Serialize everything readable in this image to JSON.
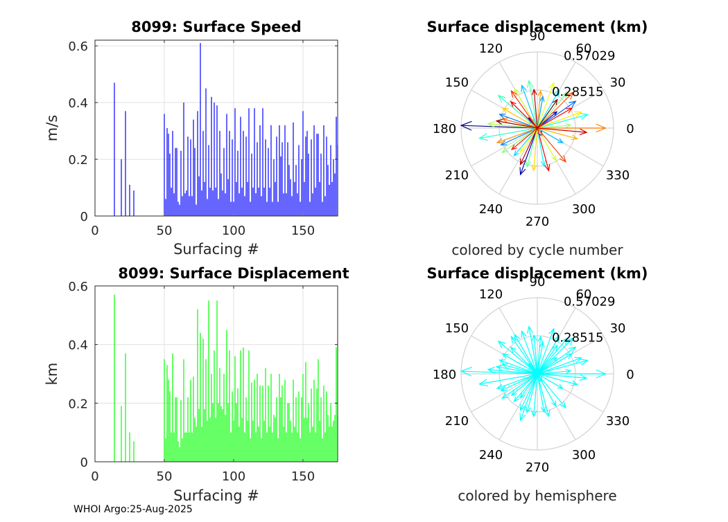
{
  "footer": "WHOI Argo:25-Aug-2025",
  "chart_data": [
    {
      "type": "bar",
      "title": "8099: Surface Speed",
      "xlabel": "Surfacing #",
      "ylabel": "m/s",
      "xlim": [
        0,
        175
      ],
      "ylim": [
        0,
        0.62
      ],
      "xticks": [
        0,
        50,
        100,
        150
      ],
      "yticks": [
        0,
        0.2,
        0.4,
        0.6
      ],
      "ytick_labels": [
        "0",
        "0.2",
        "0.4",
        "0.6"
      ],
      "grid": true,
      "color": "#0000ff",
      "x": [
        14,
        19,
        22,
        25,
        28,
        50,
        51,
        52,
        53,
        54,
        55,
        56,
        57,
        58,
        59,
        60,
        61,
        62,
        63,
        64,
        65,
        66,
        67,
        68,
        69,
        70,
        71,
        72,
        73,
        74,
        75,
        76,
        77,
        78,
        79,
        80,
        81,
        82,
        83,
        84,
        85,
        86,
        87,
        88,
        89,
        90,
        91,
        92,
        93,
        94,
        95,
        96,
        97,
        98,
        99,
        100,
        101,
        102,
        103,
        104,
        105,
        106,
        107,
        108,
        109,
        110,
        111,
        112,
        113,
        114,
        115,
        116,
        117,
        118,
        119,
        120,
        121,
        122,
        123,
        124,
        125,
        126,
        127,
        128,
        129,
        130,
        131,
        132,
        133,
        134,
        135,
        136,
        137,
        138,
        139,
        140,
        141,
        142,
        143,
        144,
        145,
        146,
        147,
        148,
        149,
        150,
        151,
        152,
        153,
        154,
        155,
        156,
        157,
        158,
        159,
        160,
        161,
        162,
        163,
        164,
        165,
        166,
        167,
        168,
        169,
        170,
        171,
        172,
        173,
        174,
        175
      ],
      "values": [
        0.47,
        0.2,
        0.37,
        0.11,
        0.09,
        0.36,
        0.06,
        0.31,
        0.29,
        0.22,
        0.1,
        0.3,
        0.08,
        0.24,
        0.24,
        0.05,
        0.04,
        0.23,
        0.07,
        0.4,
        0.08,
        0.09,
        0.28,
        0.07,
        0.27,
        0.07,
        0.34,
        0.24,
        0.04,
        0.37,
        0.14,
        0.61,
        0.09,
        0.3,
        0.12,
        0.45,
        0.06,
        0.25,
        0.1,
        0.42,
        0.09,
        0.4,
        0.1,
        0.39,
        0.06,
        0.3,
        0.15,
        0.09,
        0.24,
        0.08,
        0.36,
        0.13,
        0.3,
        0.05,
        0.27,
        0.05,
        0.38,
        0.12,
        0.23,
        0.08,
        0.35,
        0.1,
        0.3,
        0.07,
        0.28,
        0.12,
        0.38,
        0.05,
        0.22,
        0.1,
        0.38,
        0.08,
        0.26,
        0.1,
        0.32,
        0.07,
        0.38,
        0.1,
        0.27,
        0.05,
        0.24,
        0.1,
        0.32,
        0.05,
        0.2,
        0.12,
        0.28,
        0.05,
        0.32,
        0.21,
        0.26,
        0.08,
        0.32,
        0.08,
        0.26,
        0.18,
        0.13,
        0.07,
        0.33,
        0.12,
        0.18,
        0.08,
        0.25,
        0.05,
        0.2,
        0.37,
        0.12,
        0.28,
        0.3,
        0.22,
        0.05,
        0.27,
        0.08,
        0.32,
        0.1,
        0.29,
        0.29,
        0.12,
        0.22,
        0.05,
        0.32,
        0.07,
        0.28,
        0.18,
        0.11,
        0.25,
        0.12,
        0.2,
        0.15,
        0.35,
        0.25
      ]
    },
    {
      "type": "polar-arrows",
      "title": "Surface displacement (km)",
      "rmax": 0.57029,
      "ring_labels": [
        "0.28515",
        "0.57029"
      ],
      "angle_ticks": [
        0,
        30,
        60,
        90,
        120,
        150,
        180,
        210,
        240,
        270,
        300,
        330
      ],
      "angle_labels": [
        "0",
        "30",
        "60",
        "90",
        "120",
        "150",
        "180",
        "210",
        "240",
        "270",
        "300",
        "330"
      ],
      "caption": "colored by cycle number",
      "colormap": "jet",
      "arrows": [
        {
          "cycle": 14,
          "angle": 178,
          "r": 0.57
        },
        {
          "cycle": 19,
          "angle": 40,
          "r": 0.19
        },
        {
          "cycle": 22,
          "angle": 250,
          "r": 0.37
        },
        {
          "cycle": 25,
          "angle": 130,
          "r": 0.1
        },
        {
          "cycle": 28,
          "angle": 300,
          "r": 0.07
        },
        {
          "cycle": 50,
          "angle": 35,
          "r": 0.35
        },
        {
          "cycle": 53,
          "angle": 160,
          "r": 0.3
        },
        {
          "cycle": 56,
          "angle": 205,
          "r": 0.3
        },
        {
          "cycle": 59,
          "angle": 80,
          "r": 0.24
        },
        {
          "cycle": 62,
          "angle": 330,
          "r": 0.22
        },
        {
          "cycle": 65,
          "angle": 110,
          "r": 0.34
        },
        {
          "cycle": 68,
          "angle": 230,
          "r": 0.27
        },
        {
          "cycle": 71,
          "angle": 60,
          "r": 0.33
        },
        {
          "cycle": 74,
          "angle": 280,
          "r": 0.29
        },
        {
          "cycle": 77,
          "angle": 15,
          "r": 0.39
        },
        {
          "cycle": 80,
          "angle": 190,
          "r": 0.44
        },
        {
          "cycle": 83,
          "angle": 140,
          "r": 0.38
        },
        {
          "cycle": 86,
          "angle": 100,
          "r": 0.36
        },
        {
          "cycle": 89,
          "angle": 255,
          "r": 0.3
        },
        {
          "cycle": 92,
          "angle": 50,
          "r": 0.35
        },
        {
          "cycle": 95,
          "angle": 215,
          "r": 0.32
        },
        {
          "cycle": 98,
          "angle": 5,
          "r": 0.25
        },
        {
          "cycle": 101,
          "angle": 175,
          "r": 0.37
        },
        {
          "cycle": 104,
          "angle": 120,
          "r": 0.34
        },
        {
          "cycle": 107,
          "angle": 300,
          "r": 0.28
        },
        {
          "cycle": 110,
          "angle": 70,
          "r": 0.36
        },
        {
          "cycle": 113,
          "angle": 235,
          "r": 0.22
        },
        {
          "cycle": 116,
          "angle": 20,
          "r": 0.35
        },
        {
          "cycle": 119,
          "angle": 265,
          "r": 0.32
        },
        {
          "cycle": 122,
          "angle": 150,
          "r": 0.3
        },
        {
          "cycle": 125,
          "angle": 345,
          "r": 0.31
        },
        {
          "cycle": 128,
          "angle": 85,
          "r": 0.28
        },
        {
          "cycle": 131,
          "angle": 200,
          "r": 0.32
        },
        {
          "cycle": 134,
          "angle": 0,
          "r": 0.51
        },
        {
          "cycle": 137,
          "angle": 165,
          "r": 0.27
        },
        {
          "cycle": 140,
          "angle": 45,
          "r": 0.38
        },
        {
          "cycle": 143,
          "angle": 310,
          "r": 0.33
        },
        {
          "cycle": 146,
          "angle": 125,
          "r": 0.34
        },
        {
          "cycle": 149,
          "angle": 220,
          "r": 0.25
        },
        {
          "cycle": 152,
          "angle": 30,
          "r": 0.3
        },
        {
          "cycle": 155,
          "angle": 285,
          "r": 0.33
        },
        {
          "cycle": 158,
          "angle": 135,
          "r": 0.28
        },
        {
          "cycle": 161,
          "angle": 355,
          "r": 0.37
        },
        {
          "cycle": 164,
          "angle": 95,
          "r": 0.29
        },
        {
          "cycle": 167,
          "angle": 245,
          "r": 0.3
        },
        {
          "cycle": 170,
          "angle": 170,
          "r": 0.31
        },
        {
          "cycle": 173,
          "angle": 55,
          "r": 0.26
        }
      ]
    },
    {
      "type": "bar",
      "title": "8099: Surface Displacement",
      "xlabel": "Surfacing #",
      "ylabel": "km",
      "xlim": [
        0,
        175
      ],
      "ylim": [
        0,
        0.6
      ],
      "xticks": [
        0,
        50,
        100,
        150
      ],
      "yticks": [
        0,
        0.2,
        0.4,
        0.6
      ],
      "ytick_labels": [
        "0",
        "0.2",
        "0.4",
        "0.6"
      ],
      "grid": true,
      "color": "#00ff00",
      "x": [
        14,
        19,
        22,
        25,
        28,
        50,
        51,
        52,
        53,
        54,
        55,
        56,
        57,
        58,
        59,
        60,
        61,
        62,
        63,
        64,
        65,
        66,
        67,
        68,
        69,
        70,
        71,
        72,
        73,
        74,
        75,
        76,
        77,
        78,
        79,
        80,
        81,
        82,
        83,
        84,
        85,
        86,
        87,
        88,
        89,
        90,
        91,
        92,
        93,
        94,
        95,
        96,
        97,
        98,
        99,
        100,
        101,
        102,
        103,
        104,
        105,
        106,
        107,
        108,
        109,
        110,
        111,
        112,
        113,
        114,
        115,
        116,
        117,
        118,
        119,
        120,
        121,
        122,
        123,
        124,
        125,
        126,
        127,
        128,
        129,
        130,
        131,
        132,
        133,
        134,
        135,
        136,
        137,
        138,
        139,
        140,
        141,
        142,
        143,
        144,
        145,
        146,
        147,
        148,
        149,
        150,
        151,
        152,
        153,
        154,
        155,
        156,
        157,
        158,
        159,
        160,
        161,
        162,
        163,
        164,
        165,
        166,
        167,
        168,
        169,
        170,
        171,
        172,
        173,
        174,
        175
      ],
      "values": [
        0.57,
        0.19,
        0.37,
        0.1,
        0.07,
        0.35,
        0.08,
        0.33,
        0.28,
        0.24,
        0.1,
        0.37,
        0.1,
        0.22,
        0.22,
        0.07,
        0.05,
        0.21,
        0.08,
        0.35,
        0.1,
        0.1,
        0.22,
        0.1,
        0.28,
        0.1,
        0.29,
        0.15,
        0.12,
        0.52,
        0.18,
        0.44,
        0.12,
        0.42,
        0.18,
        0.35,
        0.14,
        0.55,
        0.15,
        0.3,
        0.2,
        0.38,
        0.15,
        0.55,
        0.2,
        0.32,
        0.19,
        0.18,
        0.3,
        0.16,
        0.45,
        0.2,
        0.38,
        0.1,
        0.24,
        0.14,
        0.36,
        0.2,
        0.25,
        0.12,
        0.38,
        0.15,
        0.39,
        0.1,
        0.22,
        0.14,
        0.38,
        0.08,
        0.27,
        0.14,
        0.28,
        0.1,
        0.3,
        0.12,
        0.26,
        0.08,
        0.26,
        0.14,
        0.32,
        0.1,
        0.26,
        0.12,
        0.3,
        0.1,
        0.16,
        0.15,
        0.22,
        0.08,
        0.3,
        0.22,
        0.26,
        0.12,
        0.28,
        0.1,
        0.2,
        0.2,
        0.14,
        0.1,
        0.28,
        0.12,
        0.22,
        0.1,
        0.24,
        0.08,
        0.22,
        0.3,
        0.15,
        0.34,
        0.15,
        0.2,
        0.1,
        0.25,
        0.12,
        0.28,
        0.1,
        0.25,
        0.35,
        0.14,
        0.22,
        0.08,
        0.26,
        0.1,
        0.24,
        0.16,
        0.12,
        0.2,
        0.12,
        0.14,
        0.16,
        0.39,
        0.16
      ]
    },
    {
      "type": "polar-arrows",
      "title": "Surface displacement (km)",
      "rmax": 0.57029,
      "ring_labels": [
        "0.28515",
        "0.57029"
      ],
      "angle_ticks": [
        0,
        30,
        60,
        90,
        120,
        150,
        180,
        210,
        240,
        270,
        300,
        330
      ],
      "angle_labels": [
        "0",
        "30",
        "60",
        "90",
        "120",
        "150",
        "180",
        "210",
        "240",
        "270",
        "300",
        "330"
      ],
      "caption": "colored by hemisphere",
      "color": "#00ffff",
      "arrows": [
        {
          "angle": 178,
          "r": 0.57
        },
        {
          "angle": 40,
          "r": 0.19
        },
        {
          "angle": 250,
          "r": 0.37
        },
        {
          "angle": 130,
          "r": 0.1
        },
        {
          "angle": 300,
          "r": 0.07
        },
        {
          "angle": 35,
          "r": 0.35
        },
        {
          "angle": 160,
          "r": 0.3
        },
        {
          "angle": 205,
          "r": 0.3
        },
        {
          "angle": 80,
          "r": 0.24
        },
        {
          "angle": 330,
          "r": 0.22
        },
        {
          "angle": 110,
          "r": 0.34
        },
        {
          "angle": 230,
          "r": 0.27
        },
        {
          "angle": 60,
          "r": 0.33
        },
        {
          "angle": 280,
          "r": 0.29
        },
        {
          "angle": 15,
          "r": 0.39
        },
        {
          "angle": 190,
          "r": 0.44
        },
        {
          "angle": 140,
          "r": 0.38
        },
        {
          "angle": 100,
          "r": 0.36
        },
        {
          "angle": 255,
          "r": 0.3
        },
        {
          "angle": 50,
          "r": 0.35
        },
        {
          "angle": 215,
          "r": 0.32
        },
        {
          "angle": 5,
          "r": 0.25
        },
        {
          "angle": 175,
          "r": 0.37
        },
        {
          "angle": 120,
          "r": 0.34
        },
        {
          "angle": 300,
          "r": 0.28
        },
        {
          "angle": 70,
          "r": 0.36
        },
        {
          "angle": 235,
          "r": 0.22
        },
        {
          "angle": 20,
          "r": 0.35
        },
        {
          "angle": 265,
          "r": 0.32
        },
        {
          "angle": 150,
          "r": 0.3
        },
        {
          "angle": 345,
          "r": 0.31
        },
        {
          "angle": 85,
          "r": 0.28
        },
        {
          "angle": 200,
          "r": 0.32
        },
        {
          "angle": 0,
          "r": 0.51
        },
        {
          "angle": 165,
          "r": 0.27
        },
        {
          "angle": 45,
          "r": 0.38
        },
        {
          "angle": 310,
          "r": 0.33
        },
        {
          "angle": 125,
          "r": 0.34
        },
        {
          "angle": 220,
          "r": 0.25
        },
        {
          "angle": 30,
          "r": 0.3
        },
        {
          "angle": 285,
          "r": 0.33
        },
        {
          "angle": 135,
          "r": 0.28
        },
        {
          "angle": 355,
          "r": 0.37
        },
        {
          "angle": 95,
          "r": 0.29
        },
        {
          "angle": 245,
          "r": 0.3
        },
        {
          "angle": 170,
          "r": 0.31
        },
        {
          "angle": 55,
          "r": 0.26
        }
      ]
    }
  ]
}
